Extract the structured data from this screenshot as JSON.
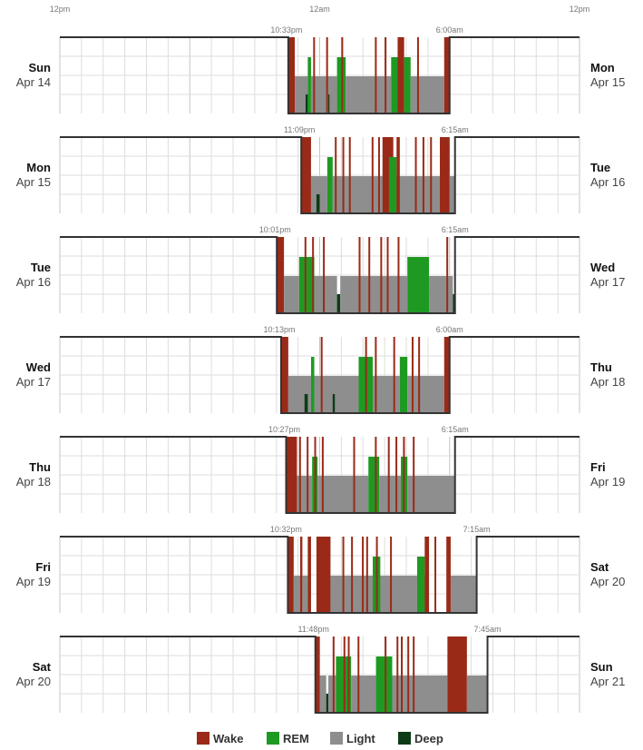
{
  "chart_data": {
    "type": "sleep-hypnogram",
    "x_axis": {
      "ticks": [
        "12pm",
        "12am",
        "12pm"
      ]
    },
    "colors": {
      "wake": "#9a2a17",
      "rem": "#1e9a22",
      "light": "#8e8e8e",
      "deep": "#0d3b16",
      "frame": "#333333",
      "grid": "#dddddd"
    },
    "legend": [
      {
        "key": "wake",
        "label": "Wake"
      },
      {
        "key": "rem",
        "label": "REM"
      },
      {
        "key": "light",
        "label": "Light"
      },
      {
        "key": "deep",
        "label": "Deep"
      }
    ],
    "nights": [
      {
        "start_dow": "Sun",
        "start_date": "Apr 14",
        "end_dow": "Mon",
        "end_date": "Apr 15",
        "bedtime": "10:33pm",
        "waketime": "6:00am",
        "start": 22.55,
        "end": 30.0,
        "segments": [
          [
            "wake",
            22.55,
            22.85
          ],
          [
            "light",
            22.85,
            23.45
          ],
          [
            "deep",
            23.35,
            23.45
          ],
          [
            "rem",
            23.45,
            23.6
          ],
          [
            "light",
            23.6,
            24.8
          ],
          [
            "deep",
            24.4,
            24.45
          ],
          [
            "rem",
            24.8,
            25.2
          ],
          [
            "light",
            25.2,
            27.3
          ],
          [
            "rem",
            27.3,
            27.75
          ],
          [
            "wake",
            27.6,
            27.9
          ],
          [
            "rem",
            27.9,
            28.2
          ],
          [
            "light",
            28.2,
            29.75
          ],
          [
            "wake",
            29.75,
            30.0
          ]
        ],
        "spikes": [
          23.7,
          24.3,
          25.0,
          26.55,
          27.0,
          28.5
        ]
      },
      {
        "start_dow": "Mon",
        "start_date": "Apr 15",
        "end_dow": "Tue",
        "end_date": "Apr 16",
        "bedtime": "11:09pm",
        "waketime": "6:15am",
        "start": 23.15,
        "end": 30.25,
        "segments": [
          [
            "wake",
            23.15,
            23.6
          ],
          [
            "light",
            23.6,
            24.0
          ],
          [
            "deep",
            23.85,
            24.0
          ],
          [
            "light",
            24.0,
            24.35
          ],
          [
            "rem",
            24.35,
            24.6
          ],
          [
            "light",
            24.6,
            29.6
          ],
          [
            "wake",
            26.9,
            27.4
          ],
          [
            "rem",
            27.2,
            27.55
          ],
          [
            "wake",
            27.55,
            27.7
          ],
          [
            "wake",
            29.55,
            30.0
          ],
          [
            "light",
            30.0,
            30.25
          ]
        ],
        "spikes": [
          24.7,
          25.05,
          25.35,
          26.4,
          26.7,
          28.4,
          28.75,
          29.1
        ]
      },
      {
        "start_dow": "Tue",
        "start_date": "Apr 16",
        "end_dow": "Wed",
        "end_date": "Apr 17",
        "bedtime": "10:01pm",
        "waketime": "6:15am",
        "start": 22.02,
        "end": 30.25,
        "segments": [
          [
            "wake",
            22.02,
            22.35
          ],
          [
            "light",
            22.35,
            23.05
          ],
          [
            "rem",
            23.05,
            23.75
          ],
          [
            "light",
            23.75,
            24.8
          ],
          [
            "deep",
            24.8,
            24.95
          ],
          [
            "light",
            24.95,
            28.05
          ],
          [
            "rem",
            28.05,
            29.05
          ],
          [
            "light",
            29.05,
            30.15
          ],
          [
            "deep",
            30.15,
            30.25
          ]
        ],
        "spikes": [
          23.3,
          23.65,
          24.15,
          25.8,
          26.25,
          26.8,
          27.1,
          27.6,
          29.85
        ]
      },
      {
        "start_dow": "Wed",
        "start_date": "Apr 17",
        "end_dow": "Thu",
        "end_date": "Apr 18",
        "bedtime": "10:13pm",
        "waketime": "6:00am",
        "start": 22.22,
        "end": 30.0,
        "segments": [
          [
            "wake",
            22.22,
            22.55
          ],
          [
            "light",
            22.55,
            23.6
          ],
          [
            "deep",
            23.3,
            23.45
          ],
          [
            "rem",
            23.6,
            23.75
          ],
          [
            "light",
            23.75,
            25.8
          ],
          [
            "deep",
            24.6,
            24.7
          ],
          [
            "rem",
            25.8,
            26.45
          ],
          [
            "light",
            26.45,
            27.7
          ],
          [
            "rem",
            27.7,
            28.05
          ],
          [
            "light",
            28.05,
            29.75
          ],
          [
            "wake",
            29.75,
            30.0
          ]
        ],
        "spikes": [
          24.05,
          26.1,
          26.55,
          27.4,
          28.25,
          28.55
        ]
      },
      {
        "start_dow": "Thu",
        "start_date": "Apr 18",
        "end_dow": "Fri",
        "end_date": "Apr 19",
        "bedtime": "10:27pm",
        "waketime": "6:15am",
        "start": 22.45,
        "end": 30.25,
        "segments": [
          [
            "wake",
            22.45,
            22.95
          ],
          [
            "light",
            22.95,
            23.65
          ],
          [
            "rem",
            23.65,
            23.9
          ],
          [
            "light",
            23.9,
            26.25
          ],
          [
            "rem",
            26.25,
            26.75
          ],
          [
            "light",
            26.75,
            27.75
          ],
          [
            "rem",
            27.75,
            28.05
          ],
          [
            "light",
            28.05,
            30.25
          ]
        ],
        "spikes": [
          23.05,
          23.4,
          23.75,
          24.1,
          25.55,
          26.55,
          27.15,
          27.5,
          27.85,
          28.3
        ]
      },
      {
        "start_dow": "Fri",
        "start_date": "Apr 19",
        "end_dow": "Sat",
        "end_date": "Apr 20",
        "bedtime": "10:32pm",
        "waketime": "7:15am",
        "start": 22.53,
        "end": 31.25,
        "segments": [
          [
            "wake",
            22.53,
            22.8
          ],
          [
            "light",
            22.8,
            23.1
          ],
          [
            "wake",
            23.1,
            23.2
          ],
          [
            "light",
            23.2,
            23.45
          ],
          [
            "wake",
            23.45,
            23.6
          ],
          [
            "wake",
            23.85,
            24.5
          ],
          [
            "light",
            24.5,
            28.5
          ],
          [
            "rem",
            26.45,
            26.8
          ],
          [
            "light",
            28.5,
            28.9
          ],
          [
            "rem",
            28.5,
            28.85
          ],
          [
            "wake",
            28.85,
            29.05
          ],
          [
            "wake",
            29.85,
            30.05
          ],
          [
            "light",
            30.05,
            31.25
          ]
        ],
        "spikes": [
          25.05,
          25.45,
          25.95,
          26.15,
          26.6,
          27.25,
          29.3
        ]
      },
      {
        "start_dow": "Sat",
        "start_date": "Apr 20",
        "end_dow": "Sun",
        "end_date": "Apr 21",
        "bedtime": "11:48pm",
        "waketime": "7:45am",
        "start": 23.8,
        "end": 31.75,
        "segments": [
          [
            "wake",
            23.8,
            24.0
          ],
          [
            "light",
            24.0,
            24.3
          ],
          [
            "deep",
            24.3,
            24.4
          ],
          [
            "light",
            24.4,
            24.75
          ],
          [
            "rem",
            24.75,
            25.45
          ],
          [
            "light",
            25.45,
            26.6
          ],
          [
            "rem",
            26.6,
            27.35
          ],
          [
            "light",
            27.35,
            29.9
          ],
          [
            "wake",
            29.9,
            30.8
          ],
          [
            "light",
            30.8,
            31.75
          ]
        ],
        "spikes": [
          24.6,
          25.1,
          25.3,
          27.0,
          27.55,
          27.75,
          28.05,
          28.3,
          25.75
        ]
      }
    ]
  }
}
